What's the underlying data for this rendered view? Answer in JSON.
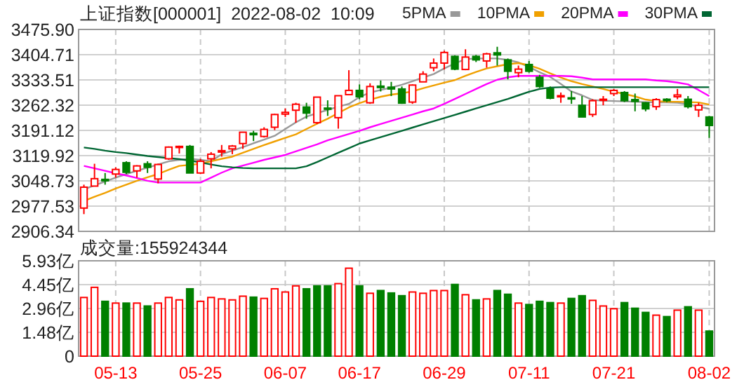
{
  "chart_data": [
    {
      "type": "candlestick",
      "title": "上证指数[000001]  2022-08-02  10:09",
      "categories": [
        null,
        null,
        null,
        null,
        null,
        null,
        null,
        null,
        null,
        null,
        null,
        null,
        null,
        null,
        null,
        null,
        null,
        null,
        null,
        null,
        null,
        null,
        null,
        null,
        null,
        null,
        null,
        null,
        null,
        null,
        null,
        null,
        null,
        null,
        null,
        null,
        null,
        null,
        null,
        null,
        null,
        null,
        null,
        null,
        null,
        null,
        null,
        null,
        null,
        null,
        null,
        null,
        null,
        null,
        null,
        null,
        null,
        null,
        null,
        null
      ],
      "ohlc": [
        [
          2972,
          3038,
          2955,
          3031
        ],
        [
          3034,
          3097,
          3034,
          3055
        ],
        [
          3053,
          3071,
          3038,
          3049
        ],
        [
          3068,
          3087,
          3058,
          3081
        ],
        [
          3100,
          3104,
          3068,
          3073
        ],
        [
          3077,
          3093,
          3058,
          3091
        ],
        [
          3097,
          3104,
          3071,
          3087
        ],
        [
          3054,
          3097,
          3042,
          3095
        ],
        [
          3111,
          3146,
          3108,
          3144
        ],
        [
          3145,
          3148,
          3126,
          3146
        ],
        [
          3146,
          3150,
          3071,
          3071
        ],
        [
          3071,
          3111,
          3068,
          3104
        ],
        [
          3111,
          3130,
          3084,
          3124
        ],
        [
          3130,
          3150,
          3117,
          3134
        ],
        [
          3139,
          3150,
          3124,
          3147
        ],
        [
          3154,
          3187,
          3139,
          3186
        ],
        [
          3183,
          3190,
          3161,
          3179
        ],
        [
          3174,
          3200,
          3171,
          3194
        ],
        [
          3200,
          3238,
          3192,
          3236
        ],
        [
          3237,
          3253,
          3229,
          3242
        ],
        [
          3248,
          3269,
          3213,
          3265
        ],
        [
          3257,
          3269,
          3224,
          3240
        ],
        [
          3213,
          3286,
          3209,
          3285
        ],
        [
          3254,
          3276,
          3232,
          3252
        ],
        [
          3227,
          3290,
          3196,
          3289
        ],
        [
          3292,
          3361,
          3292,
          3304
        ],
        [
          3304,
          3321,
          3279,
          3286
        ],
        [
          3269,
          3324,
          3266,
          3315
        ],
        [
          3316,
          3332,
          3301,
          3312
        ],
        [
          3313,
          3328,
          3288,
          3308
        ],
        [
          3308,
          3315,
          3266,
          3268
        ],
        [
          3271,
          3321,
          3266,
          3319
        ],
        [
          3328,
          3358,
          3328,
          3350
        ],
        [
          3368,
          3394,
          3358,
          3381
        ],
        [
          3381,
          3416,
          3363,
          3411
        ],
        [
          3400,
          3403,
          3361,
          3364
        ],
        [
          3363,
          3420,
          3361,
          3398
        ],
        [
          3400,
          3404,
          3384,
          3390
        ],
        [
          3387,
          3410,
          3368,
          3407
        ],
        [
          3410,
          3427,
          3374,
          3404
        ],
        [
          3390,
          3394,
          3335,
          3358
        ],
        [
          3354,
          3374,
          3341,
          3364
        ],
        [
          3377,
          3387,
          3354,
          3358
        ],
        [
          3341,
          3348,
          3311,
          3315
        ],
        [
          3308,
          3315,
          3279,
          3282
        ],
        [
          3286,
          3298,
          3269,
          3289
        ],
        [
          3283,
          3302,
          3266,
          3281
        ],
        [
          3262,
          3288,
          3229,
          3229
        ],
        [
          3236,
          3279,
          3229,
          3275
        ],
        [
          3277,
          3288,
          3262,
          3279
        ],
        [
          3295,
          3308,
          3288,
          3304
        ],
        [
          3298,
          3302,
          3271,
          3275
        ],
        [
          3278,
          3295,
          3245,
          3273
        ],
        [
          3269,
          3271,
          3245,
          3252
        ],
        [
          3258,
          3282,
          3249,
          3278
        ],
        [
          3279,
          3282,
          3271,
          3275
        ],
        [
          3286,
          3308,
          3279,
          3291
        ],
        [
          3279,
          3288,
          3253,
          3258
        ],
        [
          3249,
          3269,
          3229,
          3262
        ],
        [
          3229,
          3232,
          3170,
          3205
        ]
      ],
      "series": [
        {
          "name": "5PMA",
          "type": "line",
          "color": "#999999",
          "values": [
            3025,
            3036,
            3047,
            3058,
            3068,
            3077,
            3086,
            3095,
            3104,
            3108,
            3111,
            3108,
            3104,
            3124,
            3134,
            3144,
            3155,
            3165,
            3176,
            3195,
            3214,
            3230,
            3240,
            3249,
            3258,
            3266,
            3285,
            3298,
            3305,
            3312,
            3320,
            3330,
            3340,
            3350,
            3366,
            3380,
            3392,
            3394,
            3394,
            3394,
            3390,
            3383,
            3370,
            3355,
            3342,
            3322,
            3301,
            3290,
            3277,
            3275,
            3274,
            3273,
            3272,
            3271,
            3270,
            3270,
            3269,
            3265,
            3258,
            3252
          ]
        },
        {
          "name": "10PMA",
          "type": "line",
          "color": "#f0a000",
          "values": [
            2992,
            3004,
            3015,
            3027,
            3038,
            3049,
            3059,
            3068,
            3080,
            3091,
            3094,
            3097,
            3104,
            3111,
            3117,
            3128,
            3139,
            3150,
            3160,
            3170,
            3180,
            3195,
            3210,
            3224,
            3240,
            3256,
            3268,
            3278,
            3286,
            3292,
            3296,
            3301,
            3310,
            3318,
            3326,
            3333,
            3345,
            3356,
            3366,
            3372,
            3378,
            3381,
            3375,
            3365,
            3352,
            3340,
            3330,
            3322,
            3315,
            3308,
            3300,
            3294,
            3287,
            3278,
            3274,
            3272,
            3272,
            3271,
            3270,
            3264
          ]
        },
        {
          "name": "20PMA",
          "type": "line",
          "color": "#ff00ff",
          "values": [
            3091,
            3084,
            3077,
            3070,
            3064,
            3057,
            3049,
            3044,
            3044,
            3044,
            3044,
            3044,
            3058,
            3072,
            3084,
            3092,
            3100,
            3108,
            3115,
            3122,
            3132,
            3142,
            3152,
            3163,
            3172,
            3181,
            3190,
            3200,
            3209,
            3218,
            3227,
            3236,
            3245,
            3253,
            3266,
            3280,
            3294,
            3308,
            3322,
            3334,
            3341,
            3345,
            3345,
            3345,
            3345,
            3345,
            3344,
            3340,
            3335,
            3335,
            3335,
            3335,
            3335,
            3335,
            3332,
            3330,
            3326,
            3321,
            3305,
            3288
          ]
        },
        {
          "name": "30PMA",
          "type": "line",
          "color": "#006633",
          "values": [
            3143,
            3139,
            3134,
            3130,
            3127,
            3123,
            3119,
            3116,
            3113,
            3110,
            3106,
            3101,
            3095,
            3090,
            3087,
            3085,
            3084,
            3084,
            3084,
            3084,
            3084,
            3090,
            3102,
            3115,
            3128,
            3141,
            3154,
            3163,
            3172,
            3181,
            3190,
            3199,
            3208,
            3217,
            3226,
            3235,
            3244,
            3253,
            3262,
            3271,
            3280,
            3290,
            3300,
            3308,
            3312,
            3313,
            3313,
            3313,
            3313,
            3313,
            3313,
            3313,
            3313,
            3313,
            3313,
            3313,
            3313,
            3313,
            3313,
            3313
          ]
        }
      ],
      "ylim": [
        2906.34,
        3475.9
      ],
      "yticks": [
        2906.34,
        2977.53,
        3048.73,
        3119.92,
        3191.12,
        3262.32,
        3333.51,
        3404.71,
        {
          "value": 3475.9,
          "label": "3475.90"
        }
      ],
      "grid": true,
      "legend": "top right",
      "tick_labels": "y"
    },
    {
      "type": "bar",
      "annotations": [
        "成交量:155924344"
      ],
      "categories": [
        null,
        null,
        null,
        "05-13",
        null,
        null,
        null,
        null,
        null,
        null,
        null,
        "05-25",
        null,
        null,
        null,
        null,
        null,
        null,
        null,
        "06-07",
        null,
        null,
        null,
        null,
        null,
        null,
        "06-17",
        null,
        null,
        null,
        null,
        null,
        null,
        null,
        "06-29",
        null,
        null,
        null,
        null,
        null,
        null,
        null,
        "07-11",
        null,
        null,
        null,
        null,
        null,
        null,
        null,
        "07-21",
        null,
        null,
        null,
        null,
        null,
        null,
        null,
        null,
        "08-02"
      ],
      "values": [
        3.65,
        4.28,
        3.41,
        3.3,
        3.3,
        3.3,
        3.12,
        3.3,
        3.65,
        3.5,
        4.19,
        3.41,
        3.65,
        3.56,
        3.5,
        3.73,
        3.67,
        3.59,
        4.19,
        3.99,
        4.37,
        4.19,
        4.37,
        4.37,
        4.51,
        5.47,
        4.37,
        3.91,
        4.08,
        3.93,
        3.76,
        3.99,
        3.91,
        4.08,
        4.08,
        4.46,
        3.82,
        3.5,
        3.56,
        4.08,
        3.85,
        3.3,
        3.21,
        3.41,
        3.33,
        3.3,
        3.59,
        3.76,
        3.47,
        3.12,
        2.95,
        3.33,
        2.98,
        2.72,
        2.55,
        2.46,
        2.86,
        3.07,
        2.86,
        1.56
      ],
      "colors": [
        "#ff0000",
        "#ff0000",
        "#008000",
        "#ff0000",
        "#008000",
        "#ff0000",
        "#008000",
        "#ff0000",
        "#ff0000",
        "#ff0000",
        "#008000",
        "#ff0000",
        "#ff0000",
        "#ff0000",
        "#ff0000",
        "#ff0000",
        "#008000",
        "#ff0000",
        "#ff0000",
        "#ff0000",
        "#ff0000",
        "#008000",
        "#008000",
        "#008000",
        "#ff0000",
        "#ff0000",
        "#008000",
        "#ff0000",
        "#008000",
        "#008000",
        "#008000",
        "#ff0000",
        "#ff0000",
        "#ff0000",
        "#ff0000",
        "#008000",
        "#ff0000",
        "#008000",
        "#ff0000",
        "#008000",
        "#008000",
        "#ff0000",
        "#008000",
        "#008000",
        "#008000",
        "#ff0000",
        "#008000",
        "#008000",
        "#ff0000",
        "#ff0000",
        "#ff0000",
        "#008000",
        "#008000",
        "#008000",
        "#ff0000",
        "#008000",
        "#ff0000",
        "#008000",
        "#ff0000",
        "#008000"
      ],
      "ylim": [
        0,
        5.93
      ],
      "yticks": [
        0,
        {
          "value": 1.48,
          "label": "1.48亿"
        },
        {
          "value": 2.96,
          "label": "2.96亿"
        },
        {
          "value": 4.45,
          "label": "4.45亿"
        },
        {
          "value": 5.93,
          "label": "5.93亿"
        }
      ],
      "grid": true
    }
  ]
}
